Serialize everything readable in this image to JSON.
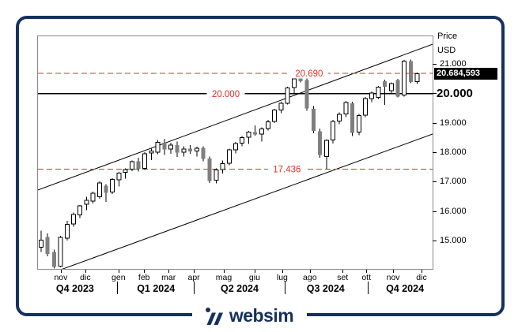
{
  "colors": {
    "frame_navy": "#16305f",
    "bullish_fill": "#ffffff",
    "bearish_fill": "#7f7f7f",
    "wick_black": "#000000",
    "level_red": "#e03228",
    "level_black": "#000000",
    "plot_border_gray": "#8a8a8a",
    "badge_bg": "#000000",
    "badge_text": "#ffffff"
  },
  "logo": {
    "icon": "websim-w-icon",
    "text": "websim"
  },
  "chart_data": {
    "type": "candlestick",
    "title": "",
    "timeframe_axis": "weekly candles, Nov 2023 - Dec 2024",
    "y_axis": {
      "title_lines": [
        "Price",
        "USD"
      ],
      "min": 14050,
      "max": 21950,
      "ticks": [
        {
          "value": 21000,
          "label": "21.000"
        },
        {
          "value": 20000,
          "label": "20.000",
          "emphasis": true
        },
        {
          "value": 19000,
          "label": "19.000"
        },
        {
          "value": 18000,
          "label": "18.000"
        },
        {
          "value": 17000,
          "label": "17.000"
        },
        {
          "value": 16000,
          "label": "16.000"
        },
        {
          "value": 15000,
          "label": "15.000"
        }
      ]
    },
    "x_axis": {
      "months": [
        {
          "label": "nov",
          "pos": 0.058
        },
        {
          "label": "dic",
          "pos": 0.12
        },
        {
          "label": "gen",
          "pos": 0.204
        },
        {
          "label": "feb",
          "pos": 0.269
        },
        {
          "label": "mar",
          "pos": 0.331
        },
        {
          "label": "apr",
          "pos": 0.395
        },
        {
          "label": "mag",
          "pos": 0.471
        },
        {
          "label": "giu",
          "pos": 0.549
        },
        {
          "label": "lug",
          "pos": 0.619
        },
        {
          "label": "ago",
          "pos": 0.689
        },
        {
          "label": "set",
          "pos": 0.772
        },
        {
          "label": "ott",
          "pos": 0.832
        },
        {
          "label": "nov",
          "pos": 0.9
        },
        {
          "label": "dic",
          "pos": 0.972
        }
      ],
      "quarters": [
        {
          "label": "Q4 2023",
          "pos": 0.094
        },
        {
          "label": "Q1 2024",
          "pos": 0.299
        },
        {
          "label": "Q2 2024",
          "pos": 0.511
        },
        {
          "label": "Q3 2024",
          "pos": 0.729
        },
        {
          "label": "Q4 2024",
          "pos": 0.93
        }
      ],
      "quarter_separators": [
        0.2,
        0.395,
        0.625,
        0.836
      ]
    },
    "levels": {
      "solid": [
        {
          "value": 20000,
          "label": "20.000",
          "label_pos": 0.476
        }
      ],
      "dashed": [
        {
          "value": 20690,
          "label": "20.690",
          "label_pos": 0.687
        },
        {
          "value": 17436,
          "label": "17.436",
          "label_pos": 0.631
        }
      ]
    },
    "trend_channel": {
      "upper": {
        "price_at_left": 16730,
        "price_at_right": 21680
      },
      "lower": {
        "price_at_left": 13740,
        "price_at_right": 18630
      }
    },
    "last_price": 20684.593,
    "last_price_label": "20.684,593",
    "candles_ohlc": [
      [
        15230,
        15700,
        15150,
        15660
      ],
      [
        14780,
        15350,
        14620,
        15030
      ],
      [
        15130,
        15260,
        14480,
        14560
      ],
      [
        14620,
        14700,
        14060,
        14120
      ],
      [
        14150,
        15180,
        14100,
        15120
      ],
      [
        15100,
        15680,
        15020,
        15560
      ],
      [
        15580,
        15960,
        15480,
        15900
      ],
      [
        15890,
        16220,
        15780,
        16190
      ],
      [
        16250,
        16500,
        16050,
        16380
      ],
      [
        16350,
        16680,
        16270,
        16620
      ],
      [
        16500,
        17020,
        16430,
        16970
      ],
      [
        16880,
        16930,
        16320,
        16640
      ],
      [
        16660,
        17130,
        16590,
        17090
      ],
      [
        17080,
        17350,
        16850,
        17310
      ],
      [
        17330,
        17460,
        17110,
        17430
      ],
      [
        17440,
        17730,
        17370,
        17690
      ],
      [
        17700,
        17830,
        17360,
        17450
      ],
      [
        17470,
        18010,
        17410,
        17960
      ],
      [
        17980,
        18140,
        17750,
        18060
      ],
      [
        18010,
        18430,
        17950,
        18350
      ],
      [
        18340,
        18470,
        17920,
        18110
      ],
      [
        18120,
        18330,
        17960,
        18260
      ],
      [
        18260,
        18370,
        17850,
        18000
      ],
      [
        18010,
        18210,
        17870,
        18120
      ],
      [
        18130,
        18260,
        17960,
        18040
      ],
      [
        18050,
        18200,
        17860,
        18150
      ],
      [
        18160,
        18220,
        17700,
        17780
      ],
      [
        17800,
        17860,
        16970,
        17040
      ],
      [
        17060,
        17460,
        16950,
        17410
      ],
      [
        17420,
        17730,
        17290,
        17630
      ],
      [
        17640,
        18130,
        17570,
        18090
      ],
      [
        18100,
        18360,
        17970,
        18310
      ],
      [
        18320,
        18560,
        18220,
        18510
      ],
      [
        18520,
        18730,
        18290,
        18690
      ],
      [
        18700,
        18920,
        18580,
        18620
      ],
      [
        18630,
        18860,
        18380,
        18810
      ],
      [
        18820,
        19110,
        18750,
        19050
      ],
      [
        19060,
        19490,
        19010,
        19440
      ],
      [
        19450,
        19730,
        19340,
        19670
      ],
      [
        19680,
        20240,
        19640,
        20200
      ],
      [
        20210,
        20560,
        20000,
        20510
      ],
      [
        20520,
        20690,
        20380,
        20420
      ],
      [
        20460,
        20520,
        19420,
        19500
      ],
      [
        19490,
        19580,
        18660,
        18740
      ],
      [
        18720,
        18820,
        17820,
        17920
      ],
      [
        17870,
        18460,
        17436,
        18410
      ],
      [
        18430,
        19110,
        18310,
        19060
      ],
      [
        19070,
        19360,
        18970,
        19300
      ],
      [
        19310,
        19760,
        19210,
        19700
      ],
      [
        19670,
        19730,
        18560,
        18670
      ],
      [
        18690,
        19310,
        18590,
        19260
      ],
      [
        19270,
        19890,
        19210,
        19830
      ],
      [
        19840,
        20070,
        19720,
        20020
      ],
      [
        19880,
        20260,
        19820,
        20220
      ],
      [
        20430,
        20480,
        19620,
        20230
      ],
      [
        20100,
        20380,
        20020,
        20340
      ],
      [
        20460,
        20500,
        19880,
        19900
      ],
      [
        19950,
        21150,
        19900,
        21100
      ],
      [
        21100,
        21160,
        20350,
        20400
      ],
      [
        20410,
        20720,
        20330,
        20684.593
      ]
    ]
  }
}
